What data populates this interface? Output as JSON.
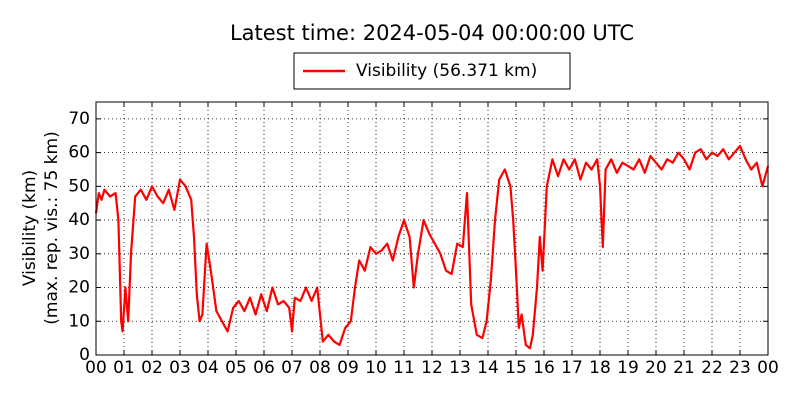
{
  "chart_data": {
    "type": "line",
    "title": "Latest time: 2024-05-04 00:00:00 UTC",
    "y_label": [
      "Visibility (km)",
      "(max. rep. vis.: 75 km)"
    ],
    "ylim": [
      0,
      75
    ],
    "yticks": [
      0,
      10,
      20,
      30,
      40,
      50,
      60,
      70
    ],
    "xlim": [
      0,
      24
    ],
    "xticks": [
      {
        "value": 0,
        "label": "00"
      },
      {
        "value": 1,
        "label": "01"
      },
      {
        "value": 2,
        "label": "02"
      },
      {
        "value": 3,
        "label": "03"
      },
      {
        "value": 4,
        "label": "04"
      },
      {
        "value": 5,
        "label": "05"
      },
      {
        "value": 6,
        "label": "06"
      },
      {
        "value": 7,
        "label": "07"
      },
      {
        "value": 8,
        "label": "08"
      },
      {
        "value": 9,
        "label": "09"
      },
      {
        "value": 10,
        "label": "10"
      },
      {
        "value": 11,
        "label": "11"
      },
      {
        "value": 12,
        "label": "12"
      },
      {
        "value": 13,
        "label": "13"
      },
      {
        "value": 14,
        "label": "14"
      },
      {
        "value": 15,
        "label": "15"
      },
      {
        "value": 16,
        "label": "16"
      },
      {
        "value": 17,
        "label": "17"
      },
      {
        "value": 18,
        "label": "18"
      },
      {
        "value": 19,
        "label": "19"
      },
      {
        "value": 20,
        "label": "20"
      },
      {
        "value": 21,
        "label": "21"
      },
      {
        "value": 22,
        "label": "22"
      },
      {
        "value": 23,
        "label": "23"
      },
      {
        "value": 24,
        "label": "00"
      }
    ],
    "grid": true,
    "legend": "top",
    "series": [
      {
        "name": "Visibility (56.371 km)",
        "color": "#ff0000",
        "x": [
          0,
          0.1,
          0.2,
          0.3,
          0.5,
          0.7,
          0.8,
          0.9,
          0.95,
          1.05,
          1.15,
          1.25,
          1.4,
          1.6,
          1.8,
          2.0,
          2.2,
          2.4,
          2.6,
          2.8,
          3.0,
          3.2,
          3.4,
          3.5,
          3.6,
          3.7,
          3.8,
          3.95,
          4.1,
          4.3,
          4.5,
          4.7,
          4.9,
          5.1,
          5.3,
          5.5,
          5.7,
          5.9,
          6.1,
          6.3,
          6.5,
          6.7,
          6.9,
          7.0,
          7.1,
          7.3,
          7.5,
          7.7,
          7.9,
          8.0,
          8.1,
          8.3,
          8.5,
          8.7,
          8.9,
          9.1,
          9.25,
          9.4,
          9.6,
          9.8,
          10.0,
          10.2,
          10.4,
          10.6,
          10.8,
          11.0,
          11.2,
          11.35,
          11.5,
          11.7,
          11.9,
          12.1,
          12.3,
          12.5,
          12.7,
          12.9,
          13.1,
          13.25,
          13.4,
          13.6,
          13.8,
          13.95,
          14.1,
          14.25,
          14.4,
          14.6,
          14.8,
          14.9,
          15.0,
          15.1,
          15.2,
          15.35,
          15.5,
          15.6,
          15.75,
          15.85,
          15.95,
          16.1,
          16.3,
          16.5,
          16.7,
          16.9,
          17.1,
          17.3,
          17.5,
          17.7,
          17.9,
          18.0,
          18.1,
          18.2,
          18.4,
          18.6,
          18.8,
          19.0,
          19.2,
          19.4,
          19.6,
          19.8,
          20.0,
          20.2,
          20.4,
          20.6,
          20.8,
          21.0,
          21.2,
          21.4,
          21.6,
          21.8,
          22.0,
          22.2,
          22.4,
          22.6,
          22.8,
          23.0,
          23.2,
          23.4,
          23.6,
          23.8,
          24.0
        ],
        "values": [
          42,
          48,
          46,
          49,
          47,
          48,
          40,
          10,
          7,
          20,
          10,
          30,
          47,
          49,
          46,
          50,
          47,
          45,
          49,
          43,
          52,
          50,
          46,
          35,
          18,
          10,
          12,
          33,
          25,
          13,
          10,
          7,
          14,
          16,
          13,
          17,
          12,
          18,
          13,
          20,
          15,
          16,
          14,
          7,
          17,
          16,
          20,
          16,
          20,
          12,
          4,
          6,
          4,
          3,
          8,
          10,
          20,
          28,
          25,
          32,
          30,
          31,
          33,
          28,
          35,
          40,
          35,
          20,
          30,
          40,
          36,
          33,
          30,
          25,
          24,
          33,
          32,
          48,
          15,
          6,
          5,
          10,
          22,
          40,
          52,
          55,
          50,
          40,
          25,
          8,
          12,
          3,
          2,
          6,
          20,
          35,
          25,
          50,
          58,
          53,
          58,
          55,
          58,
          52,
          57,
          55,
          58,
          50,
          32,
          55,
          58,
          54,
          57,
          56,
          55,
          58,
          54,
          59,
          57,
          55,
          58,
          57,
          60,
          58,
          55,
          60,
          61,
          58,
          60,
          59,
          61,
          58,
          60,
          62,
          58,
          55,
          57,
          50,
          56
        ]
      }
    ]
  }
}
